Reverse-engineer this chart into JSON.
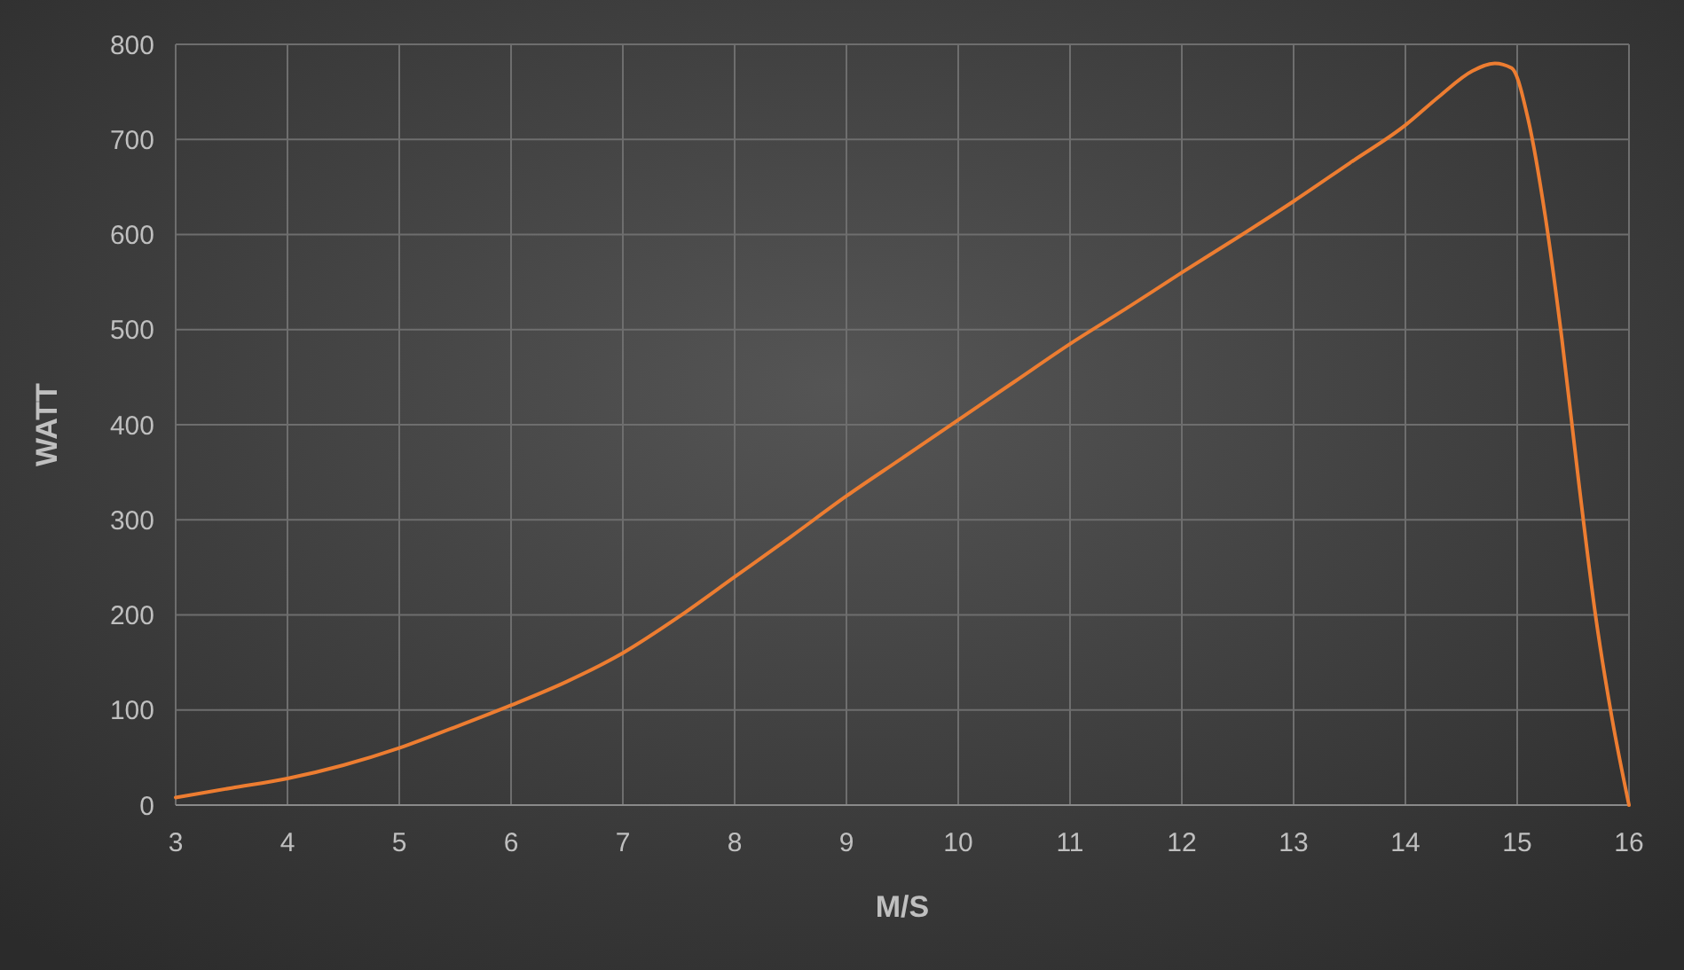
{
  "chart_data": {
    "type": "line",
    "xlabel": "M/S",
    "ylabel": "WATT",
    "series": [
      {
        "color": "#ed7d31",
        "x": [
          3,
          3.5,
          4,
          4.5,
          5,
          5.5,
          6,
          6.5,
          7,
          7.5,
          8,
          8.5,
          9,
          9.5,
          10,
          10.5,
          11,
          11.5,
          12,
          12.5,
          13,
          13.5,
          14,
          14.3,
          14.6,
          14.8,
          14.95,
          15.1,
          15.25,
          15.4,
          15.55,
          15.7,
          15.85,
          16
        ],
        "values": [
          8,
          18,
          28,
          42,
          60,
          82,
          105,
          130,
          160,
          198,
          240,
          282,
          325,
          365,
          405,
          445,
          485,
          522,
          560,
          597,
          635,
          675,
          715,
          745,
          772,
          780,
          775,
          720,
          620,
          490,
          340,
          200,
          90,
          0
        ]
      }
    ],
    "xlim": [
      3,
      16
    ],
    "xticks": [
      3,
      4,
      5,
      6,
      7,
      8,
      9,
      10,
      11,
      12,
      13,
      14,
      15,
      16
    ],
    "ylim": [
      0,
      800
    ],
    "yticks": [
      0,
      100,
      200,
      300,
      400,
      500,
      600,
      700,
      800
    ],
    "grid": true,
    "marker": "none",
    "line_style": "solid"
  }
}
